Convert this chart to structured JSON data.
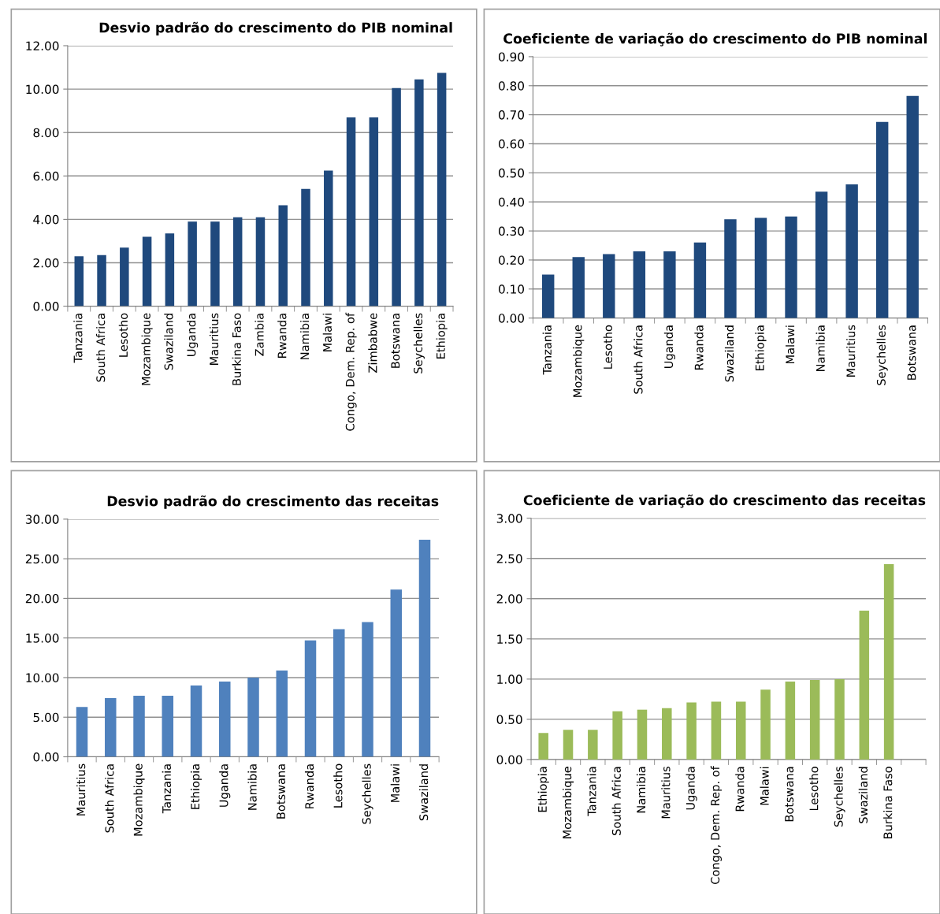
{
  "chart_data": [
    {
      "type": "bar",
      "title": "Desvio padrão do crescimento do PIB nominal",
      "categories": [
        "Tanzania",
        "South Africa",
        "Lesotho",
        "Mozambique",
        "Swaziland",
        "Uganda",
        "Mauritius",
        "Burkina Faso",
        "Zambia",
        "Rwanda",
        "Namibia",
        "Malawi",
        "Congo, Dem. Rep. of",
        "Zimbabwe",
        "Botswana",
        "Seychelles",
        "Ethiopia"
      ],
      "values": [
        2.3,
        2.35,
        2.7,
        3.2,
        3.35,
        3.9,
        3.9,
        4.1,
        4.1,
        4.65,
        5.4,
        6.25,
        8.7,
        8.7,
        10.05,
        10.45,
        10.75
      ],
      "color": "#1f497d",
      "ylim": [
        0,
        12
      ],
      "yticks": [
        {
          "value": 0,
          "label": "0.00"
        },
        {
          "value": 2,
          "label": "2.00"
        },
        {
          "value": 4,
          "label": "4.00"
        },
        {
          "value": 6,
          "label": "6.00"
        },
        {
          "value": 8,
          "label": "8.00"
        },
        {
          "value": 10,
          "label": "10.00"
        },
        {
          "value": 12,
          "label": "12.00"
        }
      ],
      "grid": "y"
    },
    {
      "type": "bar",
      "title": "Coeficiente de variação do crescimento do PIB nominal",
      "categories": [
        "Tanzania",
        "Mozambique",
        "Lesotho",
        "South Africa",
        "Uganda",
        "Rwanda",
        "Swaziland",
        "Ethiopia",
        "Malawi",
        "Namibia",
        "Mauritius",
        "Seychelles",
        "Botswana"
      ],
      "values": [
        0.15,
        0.21,
        0.22,
        0.23,
        0.23,
        0.26,
        0.34,
        0.345,
        0.35,
        0.435,
        0.46,
        0.675,
        0.765
      ],
      "color": "#1f497d",
      "ylim": [
        0,
        0.9
      ],
      "yticks": [
        {
          "value": 0,
          "label": "0.00"
        },
        {
          "value": 0.1,
          "label": "0.10"
        },
        {
          "value": 0.2,
          "label": "0.20"
        },
        {
          "value": 0.3,
          "label": "0.30"
        },
        {
          "value": 0.4,
          "label": "0.40"
        },
        {
          "value": 0.5,
          "label": "0.50"
        },
        {
          "value": 0.6,
          "label": "0.60"
        },
        {
          "value": 0.7,
          "label": "0.70"
        },
        {
          "value": 0.8,
          "label": "0.80"
        },
        {
          "value": 0.9,
          "label": "0.90"
        }
      ],
      "grid": "y"
    },
    {
      "type": "bar",
      "title": "Desvio padrão do crescimento das receitas",
      "categories": [
        "Mauritius",
        "South Africa",
        "Mozambique",
        "Tanzania",
        "Ethiopia",
        "Uganda",
        "Namibia",
        "Botswana",
        "Rwanda",
        "Lesotho",
        "Seychelles",
        "Malawi",
        "Swaziland"
      ],
      "values": [
        6.3,
        7.4,
        7.7,
        7.7,
        9.0,
        9.5,
        10.0,
        10.9,
        14.7,
        16.1,
        17.0,
        21.1,
        27.4
      ],
      "color": "#4f81bd",
      "ylim": [
        0,
        30
      ],
      "yticks": [
        {
          "value": 0,
          "label": "0.00"
        },
        {
          "value": 5,
          "label": "5.00"
        },
        {
          "value": 10,
          "label": "10.00"
        },
        {
          "value": 15,
          "label": "15.00"
        },
        {
          "value": 20,
          "label": "20.00"
        },
        {
          "value": 25,
          "label": "25.00"
        },
        {
          "value": 30,
          "label": "30.00"
        }
      ],
      "grid": "y"
    },
    {
      "type": "bar",
      "title": "Coeficiente de variação do crescimento das receitas",
      "categories": [
        "Ethiopia",
        "Mozambique",
        "Tanzania",
        "South Africa",
        "Namibia",
        "Mauritius",
        "Uganda",
        "Congo, Dem. Rep. of",
        "Rwanda",
        "Malawi",
        "Botswana",
        "Lesotho",
        "Seychelles",
        "Swaziland",
        "Burkina Faso",
        null
      ],
      "values": [
        0.33,
        0.37,
        0.37,
        0.6,
        0.62,
        0.64,
        0.71,
        0.72,
        0.72,
        0.87,
        0.97,
        0.99,
        1.0,
        1.85,
        2.43,
        null
      ],
      "color": "#9bbb59",
      "ylim": [
        0,
        3
      ],
      "yticks": [
        {
          "value": 0,
          "label": "0.00"
        },
        {
          "value": 0.5,
          "label": "0.50"
        },
        {
          "value": 1,
          "label": "1.00"
        },
        {
          "value": 1.5,
          "label": "1.50"
        },
        {
          "value": 2,
          "label": "2.00"
        },
        {
          "value": 2.5,
          "label": "2.50"
        },
        {
          "value": 3,
          "label": "3.00"
        }
      ],
      "grid": "y"
    }
  ]
}
